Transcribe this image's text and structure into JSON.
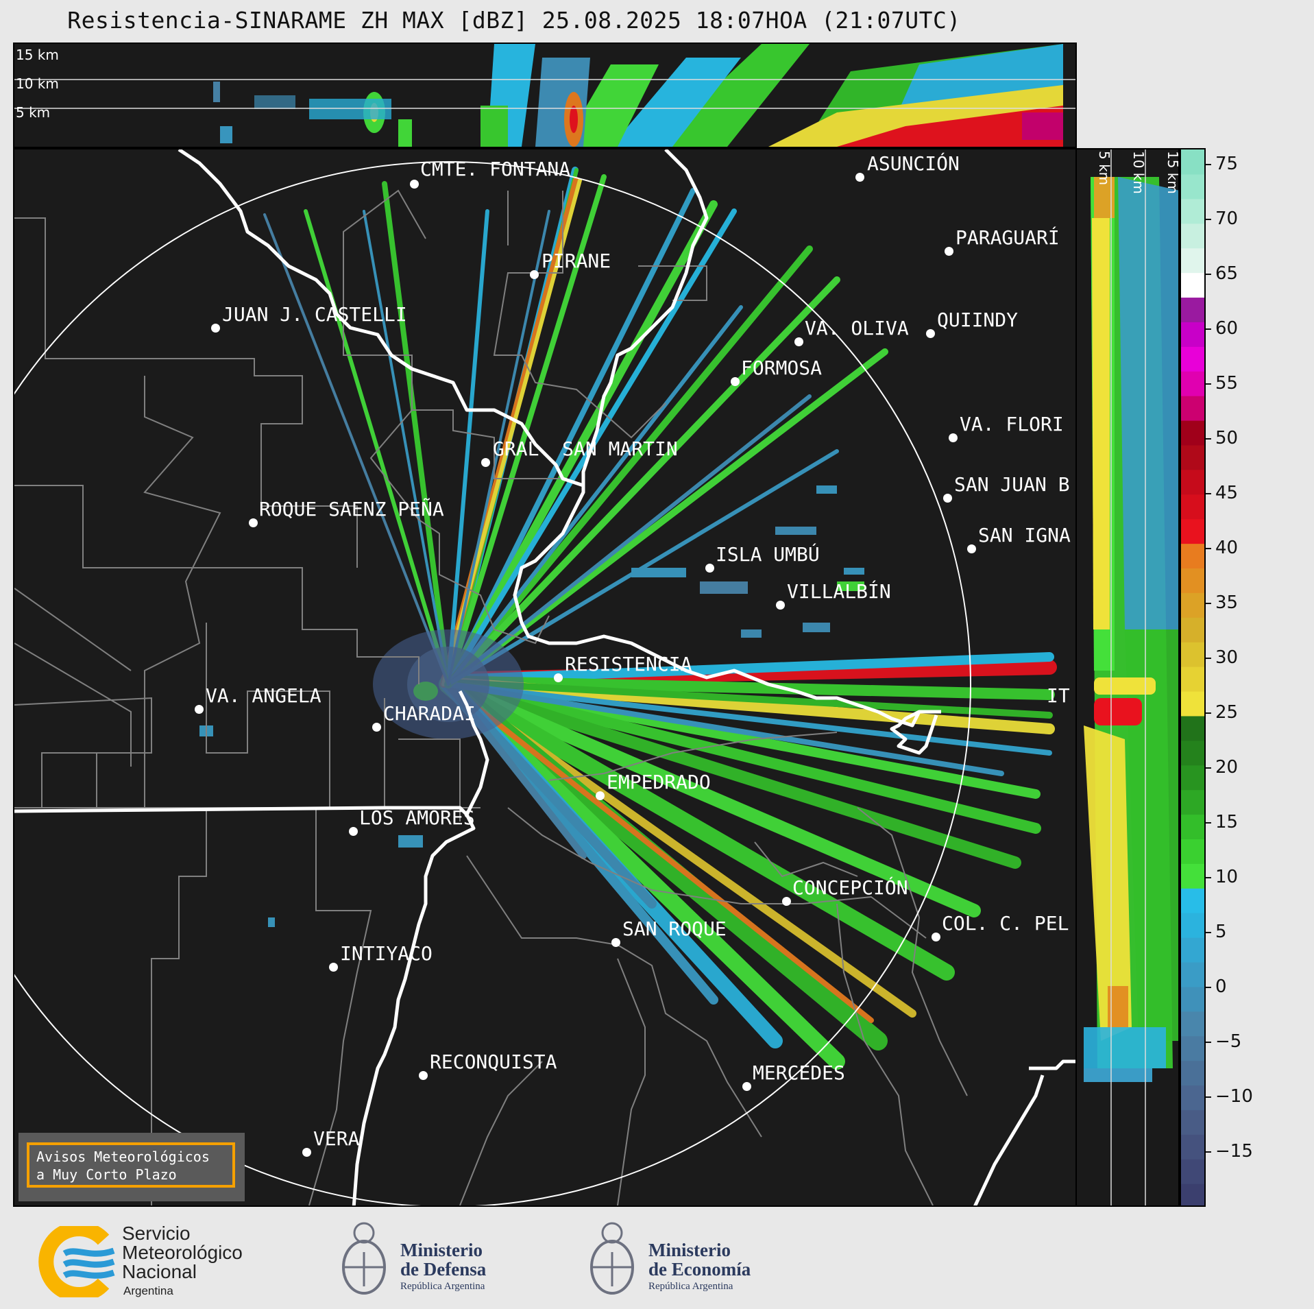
{
  "title": "Resistencia-SINARAME ZH MAX [dBZ] 25.08.2025 18:07HOA (21:07UTC)",
  "top_strip_km": [
    "15 km",
    "10 km",
    "5 km"
  ],
  "side_strip_km": [
    "5 km",
    "10 km",
    "15 km"
  ],
  "colorbar": {
    "ticks": [
      "75",
      "70",
      "65",
      "60",
      "55",
      "50",
      "45",
      "40",
      "35",
      "30",
      "25",
      "20",
      "15",
      "10",
      "5",
      "0",
      "−5",
      "−10",
      "−15"
    ],
    "min": -20,
    "max": 77,
    "colors": [
      "#3b3f6e",
      "#404876",
      "#45527e",
      "#495c86",
      "#4b6690",
      "#4a7098",
      "#4a7ba2",
      "#4986ac",
      "#3f91ba",
      "#3a9cc6",
      "#33a7d2",
      "#2bb3de",
      "#28bde8",
      "#44e03a",
      "#3ad030",
      "#33be2a",
      "#2da825",
      "#289420",
      "#24821c",
      "#21731a",
      "#efe23a",
      "#e6d233",
      "#dcc22e",
      "#d6b02a",
      "#dca226",
      "#e29022",
      "#e87c1f",
      "#e9121e",
      "#d70e1c",
      "#c60b1b",
      "#b00919",
      "#a0001a",
      "#cc0070",
      "#e000b0",
      "#e800d8",
      "#c800c8",
      "#9a1aa0",
      "#ffffff",
      "#e0f5ec",
      "#c8f0e0",
      "#b0ecd6",
      "#98e6cc",
      "#88e0c4"
    ]
  },
  "cities": [
    {
      "name": "CMTE. FONTANA",
      "label": "CMTE. FONTANA"
    },
    {
      "name": "ASUNCION",
      "label": "ASUNCIÓN"
    },
    {
      "name": "PARAGUARI",
      "label": "PARAGUARÍ"
    },
    {
      "name": "PIRANE",
      "label": "PIRANE"
    },
    {
      "name": "JUAN J. CASTELLI",
      "label": "JUAN J. CASTELLI"
    },
    {
      "name": "VA. OLIVA",
      "label": "VA. OLIVA"
    },
    {
      "name": "QUIINDY",
      "label": "QUIINDY"
    },
    {
      "name": "FORMOSA",
      "label": "FORMOSA"
    },
    {
      "name": "VA. FLORI",
      "label": "VA. FLORI"
    },
    {
      "name": "GRAL. SAN MARTIN",
      "label": "GRAL. SAN MARTIN"
    },
    {
      "name": "SAN JUAN B",
      "label": "SAN JUAN B"
    },
    {
      "name": "ROQUE SAENZ PENA",
      "label": "ROQUE SAENZ PEÑA"
    },
    {
      "name": "SAN IGNA",
      "label": "SAN IGNA"
    },
    {
      "name": "ISLA UMBU",
      "label": "ISLA UMBÚ"
    },
    {
      "name": "VILLALBIN",
      "label": "VILLALBÍN"
    },
    {
      "name": "RESISTENCIA",
      "label": "RESISTENCIA"
    },
    {
      "name": "VA. ANGELA",
      "label": "VA. ANGELA"
    },
    {
      "name": "CHARADAI",
      "label": "CHARADAI"
    },
    {
      "name": "IT",
      "label": "IT"
    },
    {
      "name": "EMPEDRADO",
      "label": "EMPEDRADO"
    },
    {
      "name": "LOS AMORES",
      "label": "LOS AMORES"
    },
    {
      "name": "CONCEPCION",
      "label": "CONCEPCIÓN"
    },
    {
      "name": "SAN ROQUE",
      "label": "SAN ROQUE"
    },
    {
      "name": "COL. C. PEL",
      "label": "COL. C. PEL"
    },
    {
      "name": "INTIYACO",
      "label": "INTIYACO"
    },
    {
      "name": "RECONQUISTA",
      "label": "RECONQUISTA"
    },
    {
      "name": "MERCEDES",
      "label": "MERCEDES"
    },
    {
      "name": "VERA",
      "label": "VERA"
    }
  ],
  "avisos": {
    "line1": "Avisos Meteorológicos",
    "line2": "a Muy Corto Plazo"
  },
  "footer": {
    "smn": {
      "line1": "Servicio",
      "line2": "Meteorológico",
      "line3": "Nacional",
      "line4": "Argentina"
    },
    "defensa": {
      "line1": "Ministerio",
      "line2": "de Defensa",
      "sub": "República Argentina"
    },
    "economia": {
      "line1": "Ministerio",
      "line2": "de Economía",
      "sub": "República Argentina"
    }
  },
  "colors": {
    "background": "#1b1b1b",
    "range_ring": "#ffffff",
    "rivers": "#ffffff",
    "borders": "#808080",
    "avisos_border": "#f5a000",
    "smn_blue": "#2a9ad6",
    "smn_yellow": "#f9b400"
  }
}
